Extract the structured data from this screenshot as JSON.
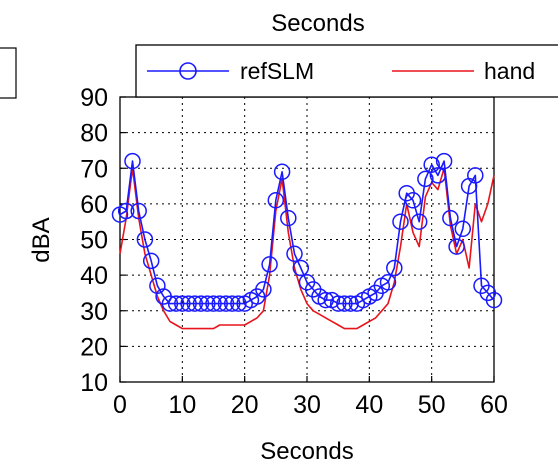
{
  "chart_data": {
    "type": "line",
    "top_title": "Seconds",
    "xlabel": "Seconds",
    "ylabel": "dBA",
    "xlim": [
      0,
      60
    ],
    "ylim": [
      10,
      90
    ],
    "x_ticks": [
      "0",
      "10",
      "20",
      "30",
      "40",
      "50",
      "60"
    ],
    "y_ticks": [
      "10",
      "20",
      "30",
      "40",
      "50",
      "60",
      "70",
      "80",
      "90"
    ],
    "grid": true,
    "legend_placement": "top",
    "series": [
      {
        "name": "refSLM",
        "color": "#1a1aff",
        "marker": "circle",
        "x": [
          0,
          1,
          2,
          3,
          4,
          5,
          6,
          7,
          8,
          9,
          10,
          11,
          12,
          13,
          14,
          15,
          16,
          17,
          18,
          19,
          20,
          21,
          22,
          23,
          24,
          25,
          26,
          27,
          28,
          29,
          30,
          31,
          32,
          33,
          34,
          35,
          36,
          37,
          38,
          39,
          40,
          41,
          42,
          43,
          44,
          45,
          46,
          47,
          48,
          49,
          50,
          51,
          52,
          53,
          54,
          55,
          56,
          57,
          58,
          59,
          60
        ],
        "values": [
          57,
          58,
          72,
          58,
          50,
          44,
          37,
          34,
          32,
          32,
          32,
          32,
          32,
          32,
          32,
          32,
          32,
          32,
          32,
          32,
          32,
          33,
          34,
          36,
          43,
          61,
          69,
          56,
          46,
          42,
          38,
          36,
          34,
          33,
          33,
          32,
          32,
          32,
          32,
          33,
          34,
          35,
          37,
          38,
          42,
          55,
          63,
          61,
          55,
          67,
          71,
          68,
          72,
          56,
          48,
          53,
          65,
          68,
          37,
          35,
          33
        ]
      },
      {
        "name": "hand",
        "color": "#e8141c",
        "marker": "none",
        "x": [
          0,
          1,
          2,
          3,
          4,
          5,
          6,
          7,
          8,
          9,
          10,
          11,
          12,
          13,
          14,
          15,
          16,
          17,
          18,
          19,
          20,
          21,
          22,
          23,
          24,
          25,
          26,
          27,
          28,
          29,
          30,
          31,
          32,
          33,
          34,
          35,
          36,
          37,
          38,
          39,
          40,
          41,
          42,
          43,
          44,
          45,
          46,
          47,
          48,
          49,
          50,
          51,
          52,
          53,
          54,
          55,
          56,
          57,
          58,
          59,
          60
        ],
        "values": [
          46,
          56,
          70,
          56,
          46,
          40,
          34,
          30,
          27,
          26,
          25,
          25,
          25,
          25,
          25,
          25,
          26,
          26,
          26,
          26,
          26,
          27,
          28,
          30,
          40,
          58,
          67,
          52,
          42,
          36,
          32,
          30,
          29,
          28,
          27,
          26,
          25,
          25,
          25,
          26,
          27,
          28,
          30,
          32,
          38,
          48,
          60,
          52,
          48,
          62,
          66,
          64,
          70,
          54,
          46,
          50,
          42,
          60,
          55,
          60,
          68
        ]
      }
    ]
  }
}
